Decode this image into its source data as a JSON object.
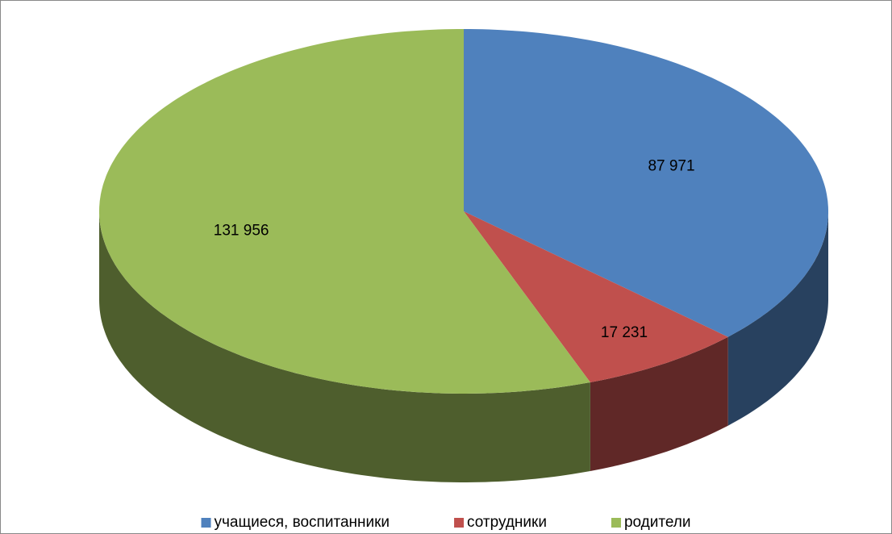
{
  "chart_data": {
    "type": "pie3d",
    "categories": [
      "учащиеся, воспитанники",
      "сотрудники",
      "родители"
    ],
    "values": [
      87971,
      17231,
      131956
    ],
    "value_labels": [
      "87 971",
      "17 231",
      "131 956"
    ],
    "colors": [
      "#4f81bd",
      "#c0504d",
      "#9bbb59"
    ],
    "legend": "bottom"
  }
}
